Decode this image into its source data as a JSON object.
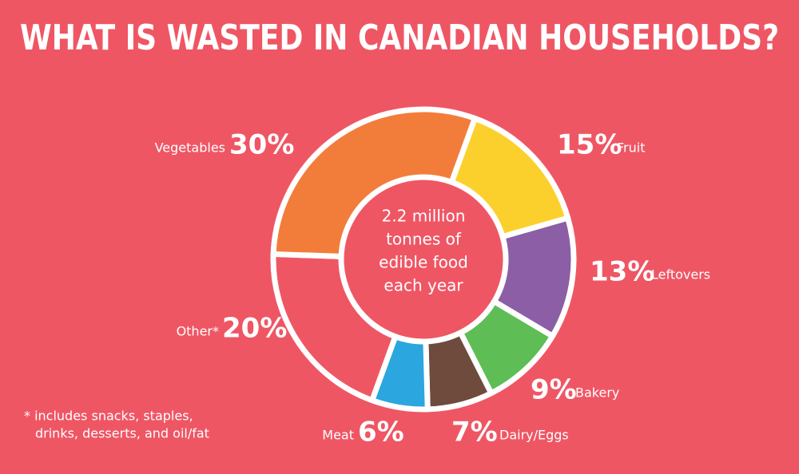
{
  "chart_data": {
    "type": "donut",
    "title": "WHAT IS WASTED IN CANADIAN HOUSEHOLDS?",
    "categories": [
      "Fruit",
      "Leftovers",
      "Bakery",
      "Dairy/Eggs",
      "Meat",
      "Other*",
      "Vegetables"
    ],
    "values": [
      15,
      13,
      9,
      7,
      6,
      20,
      30
    ],
    "value_labels": [
      "15%",
      "13%",
      "9%",
      "7%",
      "6%",
      "20%",
      "30%"
    ],
    "colors": [
      "#fcd02c",
      "#8b5ea6",
      "#5ebd55",
      "#6e4b3c",
      "#2ba6de",
      "#ef5664",
      "#f27d3b"
    ],
    "center_text": [
      "2.2 million",
      "tonnes of",
      "edible food",
      "each year"
    ],
    "footnote": [
      "* includes snacks, staples,",
      "drinks, desserts, and oil/fat"
    ]
  }
}
